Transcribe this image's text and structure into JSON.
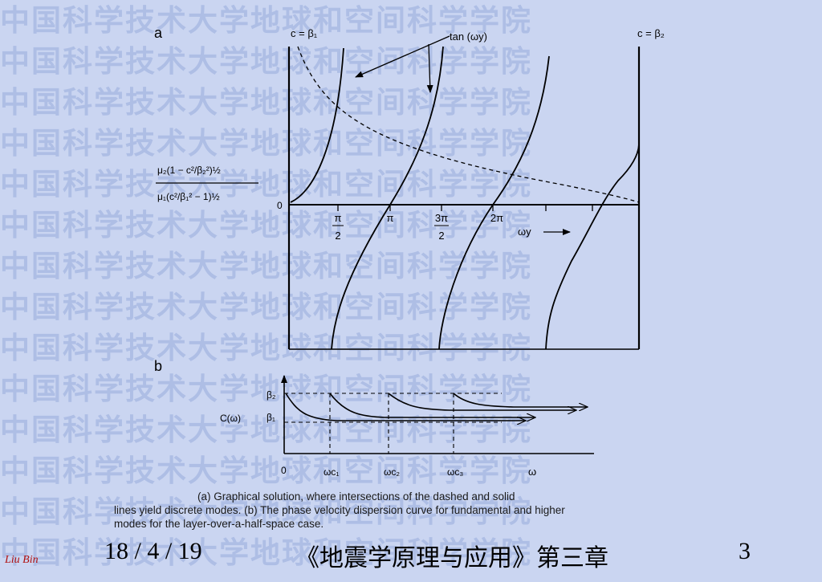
{
  "watermark": "中国科学技术大学地球和空间科学学院",
  "panel_a": {
    "label": "a",
    "left_boundary": "c = β₁",
    "right_boundary": "c = β₂",
    "curve_label": "tan (ωy)",
    "zero": "0",
    "x_label": "ωy",
    "ratio_numerator": "μ₂(1 − c²/β₂²)½",
    "ratio_denominator": "μ₁(c²/β₁² − 1)½",
    "ticks": [
      {
        "num": "π",
        "den": "2"
      },
      {
        "num": "π"
      },
      {
        "num": "3π",
        "den": "2"
      },
      {
        "num": "2π"
      }
    ]
  },
  "panel_b": {
    "label": "b",
    "y_label": "C(ω)",
    "beta2": "β₂",
    "beta1": "β₁",
    "origin": "0",
    "x_label": "ω",
    "cutoffs": [
      "ωc₁",
      "ωc₂",
      "ωc₃"
    ]
  },
  "caption": [
    "(a) Graphical solution, where intersections of the dashed and solid",
    "lines yield discrete modes. (b) The phase velocity dispersion curve for fundamental and higher",
    "modes for the layer-over-a-half-space case."
  ],
  "footer": {
    "signature": "Liu Bin",
    "date": "18 / 4 / 19",
    "title": "《地震学原理与应用》第三章",
    "page": "3"
  }
}
